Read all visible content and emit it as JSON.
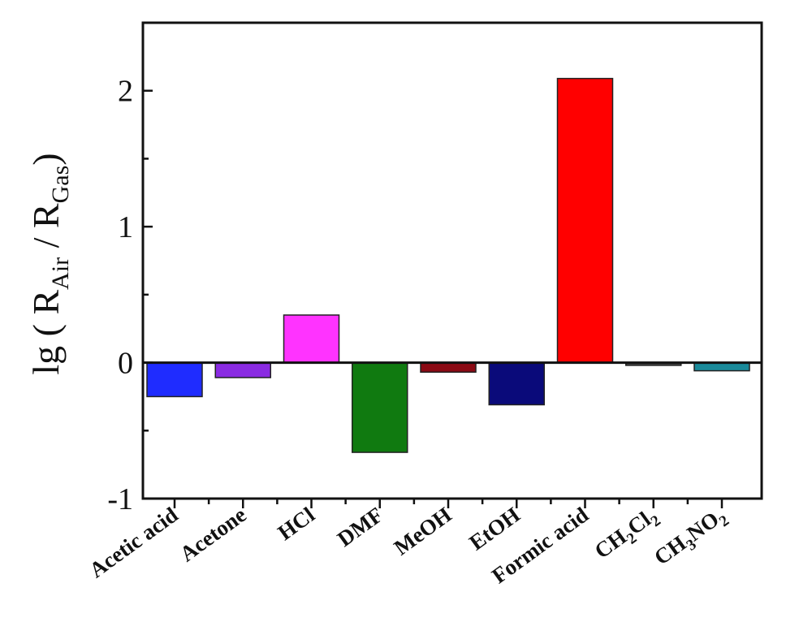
{
  "chart_data": {
    "type": "bar",
    "categories": [
      "Acetic acid",
      "Acetone",
      "HCl",
      "DMF",
      "MeOH",
      "EtOH",
      "Formic acid",
      "CH2Cl2",
      "CH3NO2"
    ],
    "category_labels": [
      [
        {
          "t": "Acetic acid",
          "sub": false
        }
      ],
      [
        {
          "t": "Acetone",
          "sub": false
        }
      ],
      [
        {
          "t": "HCl",
          "sub": false
        }
      ],
      [
        {
          "t": "DMF",
          "sub": false
        }
      ],
      [
        {
          "t": "MeOH",
          "sub": false
        }
      ],
      [
        {
          "t": "EtOH",
          "sub": false
        }
      ],
      [
        {
          "t": "Formic acid",
          "sub": false
        }
      ],
      [
        {
          "t": "CH",
          "sub": false
        },
        {
          "t": "2",
          "sub": true
        },
        {
          "t": "Cl",
          "sub": false
        },
        {
          "t": "2",
          "sub": true
        }
      ],
      [
        {
          "t": "CH",
          "sub": false
        },
        {
          "t": "3",
          "sub": true
        },
        {
          "t": "NO",
          "sub": false
        },
        {
          "t": "2",
          "sub": true
        }
      ]
    ],
    "values": [
      -0.25,
      -0.11,
      0.35,
      -0.66,
      -0.07,
      -0.31,
      2.09,
      -0.02,
      -0.06
    ],
    "colors": [
      "#1f2cff",
      "#8a2be2",
      "#ff33ff",
      "#107a10",
      "#8b0a14",
      "#0a0a7a",
      "#ff0000",
      "#4a4a4a",
      "#1a8a9a"
    ],
    "ylim": [
      -1,
      2.5
    ],
    "yticks": [
      -1,
      0,
      1,
      2
    ],
    "ytick_labels": [
      "-1",
      "0",
      "1",
      "2"
    ],
    "ylabel_parts": [
      {
        "t": "lg ( R",
        "sub": false
      },
      {
        "t": "Air",
        "sub": true
      },
      {
        "t": " / R",
        "sub": false
      },
      {
        "t": "Gas",
        "sub": true
      },
      {
        "t": ")",
        "sub": false
      }
    ]
  }
}
